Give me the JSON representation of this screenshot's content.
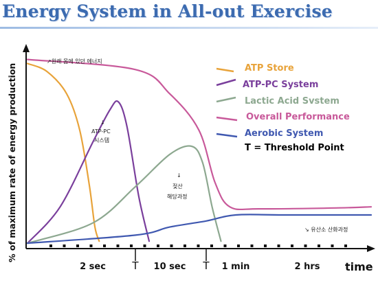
{
  "title": "Energy System in All-out Exercise",
  "chart_data": {
    "type": "line",
    "ylabel": "% of maximum rate of energy production",
    "xlabel": "time",
    "x_ticks": [
      {
        "label": "2 sec",
        "x": 1
      },
      {
        "label": "T",
        "x": 2
      },
      {
        "label": "10 sec",
        "x": 3
      },
      {
        "label": "T",
        "x": 4
      },
      {
        "label": "1 min",
        "x": 5
      },
      {
        "label": "2 hrs",
        "x": 8
      }
    ],
    "xlim": [
      0,
      10
    ],
    "ylim": [
      0,
      100
    ],
    "series": [
      {
        "name": "ATP Store",
        "color": "#e8a33a",
        "points": [
          [
            0,
            91
          ],
          [
            0.3,
            87
          ],
          [
            0.6,
            76
          ],
          [
            0.8,
            58
          ],
          [
            0.95,
            30
          ],
          [
            1.05,
            10
          ],
          [
            1.15,
            3
          ]
        ]
      },
      {
        "name": "ATP-PC System",
        "color": "#7a3f9c",
        "points": [
          [
            0,
            2
          ],
          [
            0.5,
            20
          ],
          [
            1,
            52
          ],
          [
            1.4,
            68
          ],
          [
            1.6,
            72
          ],
          [
            1.8,
            60
          ],
          [
            2.1,
            25
          ],
          [
            2.4,
            3
          ]
        ]
      },
      {
        "name": "Lactic Acid Svstem",
        "color": "#8da890",
        "points": [
          [
            0,
            2
          ],
          [
            1,
            12
          ],
          [
            2,
            30
          ],
          [
            3,
            46
          ],
          [
            3.6,
            50
          ],
          [
            3.9,
            42
          ],
          [
            4.2,
            20
          ],
          [
            4.5,
            3
          ]
        ]
      },
      {
        "name": "Overall Performance",
        "color": "#c8599a",
        "points": [
          [
            0,
            93
          ],
          [
            2,
            88
          ],
          [
            3,
            76
          ],
          [
            3.8,
            58
          ],
          [
            4.3,
            32
          ],
          [
            4.8,
            20
          ],
          [
            6,
            19
          ],
          [
            9,
            19.5
          ],
          [
            10,
            20
          ]
        ]
      },
      {
        "name": "Aerobic System",
        "color": "#3f58b0",
        "points": [
          [
            0,
            2
          ],
          [
            2,
            6
          ],
          [
            3,
            10
          ],
          [
            4,
            13
          ],
          [
            5,
            16
          ],
          [
            7,
            16
          ],
          [
            10,
            16
          ]
        ]
      }
    ],
    "legend_extra": "T = Threshold Point",
    "legend_position": "top-right",
    "annotations": [
      {
        "text": "↗원래 몸에 있던 에너지"
      },
      {
        "text": "↓"
      },
      {
        "text": "ATP-PC"
      },
      {
        "text": "시스템"
      },
      {
        "text": "↓"
      },
      {
        "text": "젖산"
      },
      {
        "text": "해당과정"
      },
      {
        "text": "↘ 유산소 산화과정"
      }
    ]
  }
}
